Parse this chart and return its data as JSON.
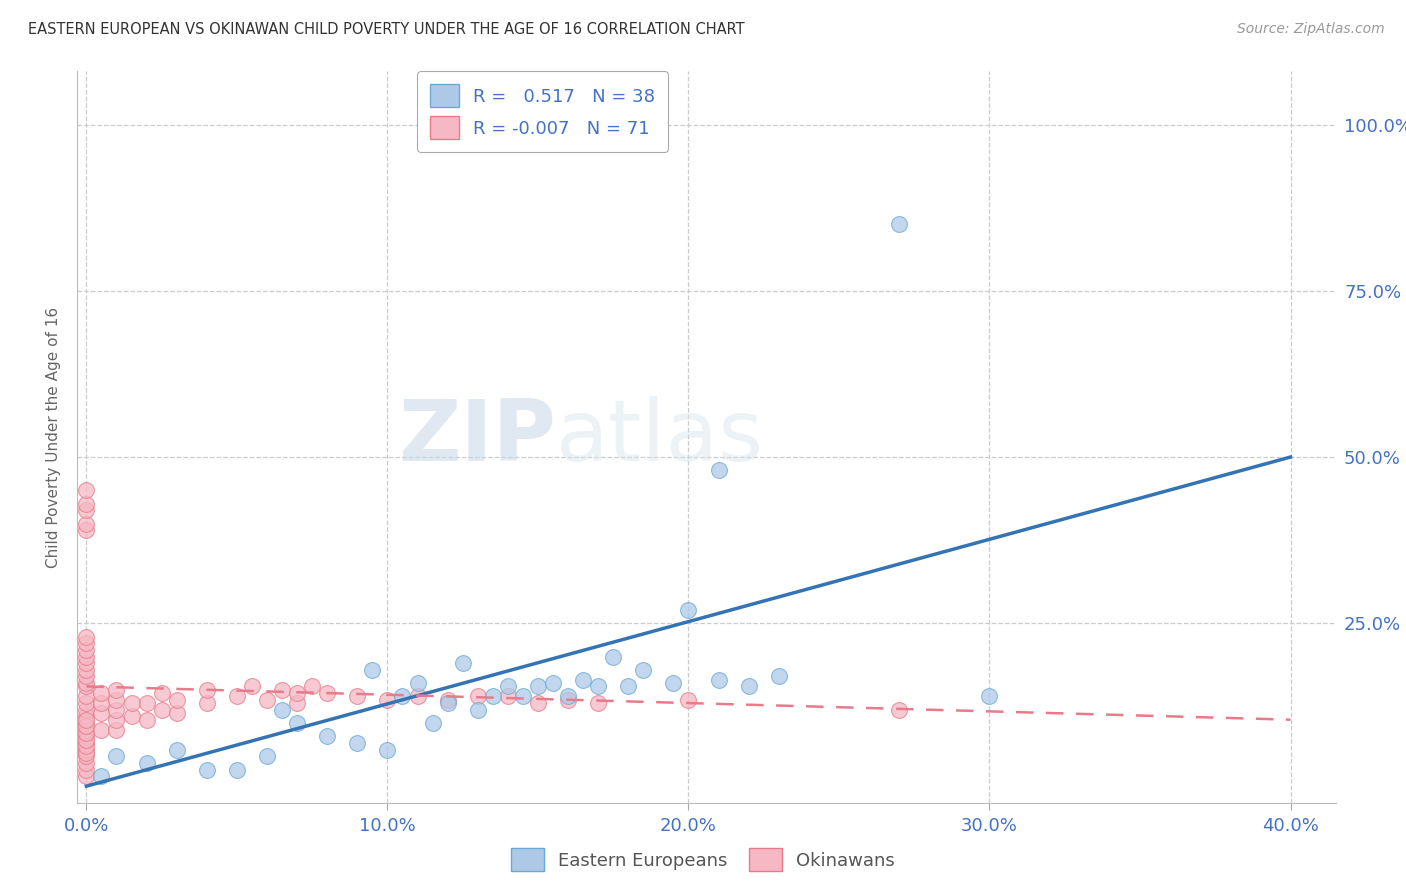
{
  "title": "EASTERN EUROPEAN VS OKINAWAN CHILD POVERTY UNDER THE AGE OF 16 CORRELATION CHART",
  "source": "Source: ZipAtlas.com",
  "ylabel": "Child Poverty Under the Age of 16",
  "xlim": [
    -0.003,
    0.415
  ],
  "ylim": [
    -0.02,
    1.08
  ],
  "xtick_labels": [
    "0.0%",
    "10.0%",
    "20.0%",
    "30.0%",
    "40.0%"
  ],
  "xtick_vals": [
    0.0,
    0.1,
    0.2,
    0.3,
    0.4
  ],
  "ytick_vals_right": [
    1.0,
    0.75,
    0.5,
    0.25
  ],
  "ytick_labels_right": [
    "100.0%",
    "75.0%",
    "50.0%",
    "25.0%"
  ],
  "blue_R": "0.517",
  "blue_N": "38",
  "pink_R": "-0.007",
  "pink_N": "71",
  "blue_face_color": "#aec9e8",
  "pink_face_color": "#f5b8c4",
  "blue_edge_color": "#6aaad4",
  "pink_edge_color": "#e87a8a",
  "blue_line_color": "#3474b5",
  "pink_line_color": "#e87a8a",
  "legend_label_blue": "Eastern Europeans",
  "legend_label_pink": "Okinawans",
  "watermark_zip": "ZIP",
  "watermark_atlas": "atlas",
  "blue_scatter_x": [
    0.005,
    0.01,
    0.02,
    0.03,
    0.04,
    0.05,
    0.06,
    0.065,
    0.07,
    0.08,
    0.09,
    0.095,
    0.1,
    0.105,
    0.11,
    0.115,
    0.12,
    0.125,
    0.13,
    0.135,
    0.14,
    0.145,
    0.15,
    0.155,
    0.16,
    0.165,
    0.17,
    0.175,
    0.18,
    0.185,
    0.195,
    0.2,
    0.21,
    0.22,
    0.23,
    0.27,
    0.3,
    0.21
  ],
  "blue_scatter_y": [
    0.02,
    0.05,
    0.04,
    0.06,
    0.03,
    0.03,
    0.05,
    0.12,
    0.1,
    0.08,
    0.07,
    0.18,
    0.06,
    0.14,
    0.16,
    0.1,
    0.13,
    0.19,
    0.12,
    0.14,
    0.155,
    0.14,
    0.155,
    0.16,
    0.14,
    0.165,
    0.155,
    0.2,
    0.155,
    0.18,
    0.16,
    0.27,
    0.165,
    0.155,
    0.17,
    0.85,
    0.14,
    0.48
  ],
  "pink_scatter_x": [
    0.0,
    0.0,
    0.0,
    0.0,
    0.0,
    0.0,
    0.0,
    0.0,
    0.0,
    0.0,
    0.0,
    0.0,
    0.0,
    0.0,
    0.0,
    0.0,
    0.0,
    0.0,
    0.0,
    0.0,
    0.0,
    0.0,
    0.0,
    0.0,
    0.0,
    0.0,
    0.0,
    0.0,
    0.0,
    0.0,
    0.0,
    0.0,
    0.0,
    0.005,
    0.005,
    0.005,
    0.005,
    0.01,
    0.01,
    0.01,
    0.01,
    0.01,
    0.015,
    0.015,
    0.02,
    0.02,
    0.025,
    0.025,
    0.03,
    0.03,
    0.04,
    0.04,
    0.05,
    0.055,
    0.06,
    0.065,
    0.07,
    0.07,
    0.075,
    0.08,
    0.09,
    0.1,
    0.11,
    0.12,
    0.13,
    0.14,
    0.15,
    0.16,
    0.17,
    0.2,
    0.27
  ],
  "pink_scatter_y": [
    0.02,
    0.03,
    0.04,
    0.05,
    0.06,
    0.07,
    0.08,
    0.09,
    0.1,
    0.11,
    0.12,
    0.13,
    0.14,
    0.155,
    0.16,
    0.17,
    0.18,
    0.19,
    0.2,
    0.21,
    0.22,
    0.23,
    0.39,
    0.4,
    0.42,
    0.43,
    0.45,
    0.055,
    0.065,
    0.075,
    0.085,
    0.095,
    0.105,
    0.09,
    0.115,
    0.13,
    0.145,
    0.09,
    0.105,
    0.12,
    0.135,
    0.15,
    0.11,
    0.13,
    0.105,
    0.13,
    0.12,
    0.145,
    0.115,
    0.135,
    0.13,
    0.15,
    0.14,
    0.155,
    0.135,
    0.15,
    0.13,
    0.145,
    0.155,
    0.145,
    0.14,
    0.135,
    0.14,
    0.135,
    0.14,
    0.14,
    0.13,
    0.135,
    0.13,
    0.135,
    0.12
  ],
  "blue_line_x": [
    0.0,
    0.4
  ],
  "blue_line_y": [
    0.005,
    0.5
  ],
  "pink_line_x": [
    0.0,
    0.4
  ],
  "pink_line_y": [
    0.155,
    0.105
  ],
  "background_color": "#ffffff",
  "grid_color": "#cccccc",
  "title_color": "#333333",
  "axis_color": "#4472c4",
  "source_color": "#999999"
}
